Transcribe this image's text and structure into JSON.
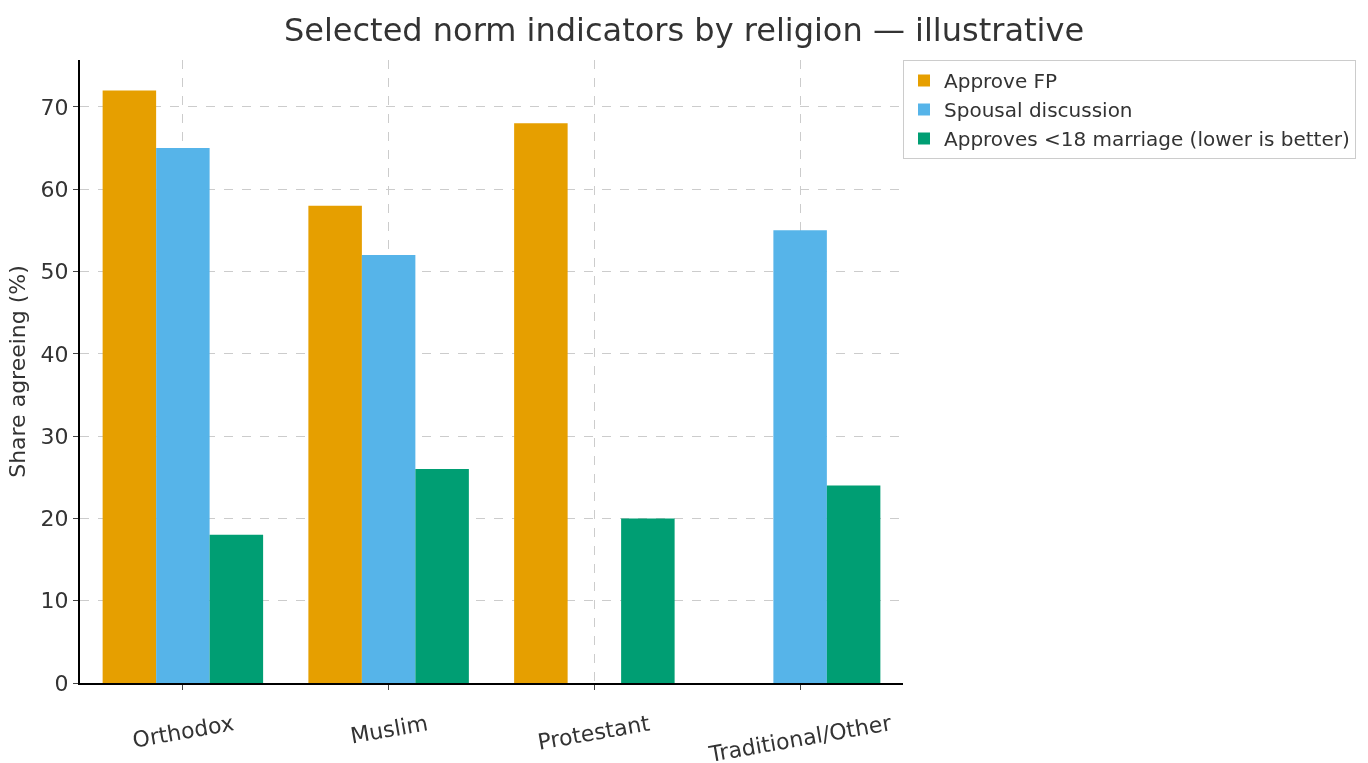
{
  "chart_data": {
    "type": "bar",
    "title": "Selected norm indicators by religion — illustrative",
    "ylabel": "Share agreeing (%)",
    "categories": [
      "Orthodox",
      "Muslim",
      "Protestant",
      "Traditional/Other"
    ],
    "series": [
      {
        "name": "Approve FP",
        "color": "#e69f00",
        "values": [
          72,
          58,
          68,
          null
        ]
      },
      {
        "name": "Spousal discussion",
        "color": "#56b4e9",
        "values": [
          65,
          52,
          null,
          55
        ]
      },
      {
        "name": "Approves <18 marriage (lower is better)",
        "color": "#009e73",
        "values": [
          18,
          26,
          20,
          24
        ]
      }
    ],
    "ylim": [
      0,
      75.7
    ],
    "yticks": [
      0,
      10,
      20,
      30,
      40,
      50,
      60,
      70
    ],
    "grid": true,
    "legend": "top right"
  }
}
